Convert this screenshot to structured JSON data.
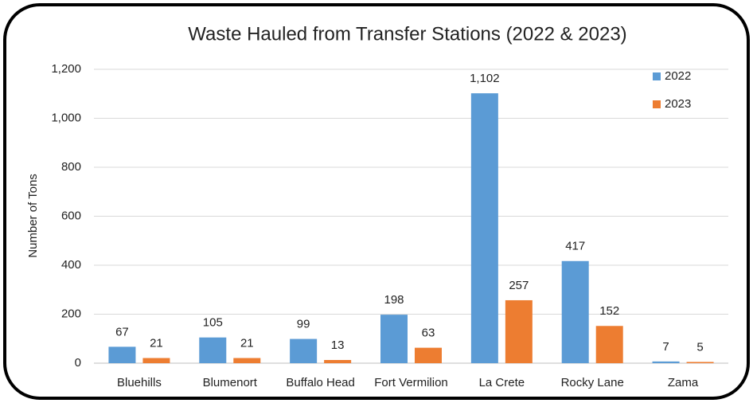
{
  "chart_data": {
    "type": "bar",
    "title": "Waste Hauled from Transfer Stations (2022 & 2023)",
    "ylabel": "Number of Tons",
    "categories": [
      "Bluehills",
      "Blumenort",
      "Buffalo Head",
      "Fort Vermilion",
      "La Crete",
      "Rocky Lane",
      "Zama"
    ],
    "series": [
      {
        "name": "2022",
        "color": "#5b9bd5",
        "values": [
          67,
          105,
          99,
          198,
          1102,
          417,
          7
        ],
        "value_labels": [
          "67",
          "105",
          "99",
          "198",
          "1,102",
          "417",
          "7"
        ]
      },
      {
        "name": "2023",
        "color": "#ed7d31",
        "values": [
          21,
          21,
          13,
          63,
          257,
          152,
          5
        ]
      }
    ],
    "ylim": [
      0,
      1200
    ],
    "yticks": [
      0,
      200,
      400,
      600,
      800,
      {
        "value": 1000,
        "label": "1,000"
      },
      {
        "value": 1200,
        "label": "1,200"
      }
    ],
    "grid": true,
    "legend": "top-right"
  }
}
